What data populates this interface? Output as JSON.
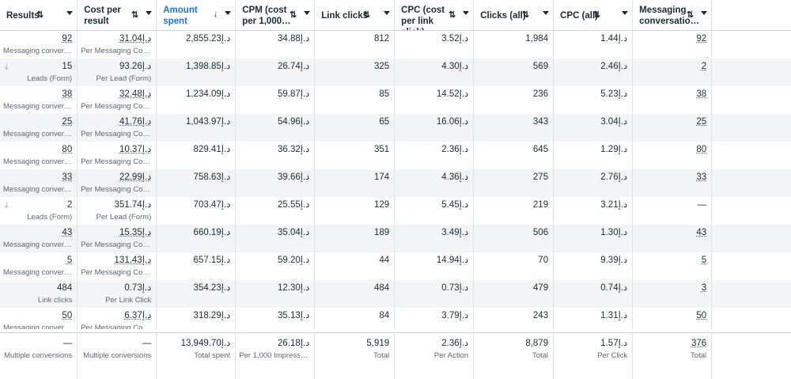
{
  "headers": [
    {
      "label": "Results",
      "sort": "⇅",
      "active": false
    },
    {
      "label": "Cost per result",
      "sort": "⇅",
      "active": false
    },
    {
      "label": "Amount spent",
      "sort": "↓",
      "active": true
    },
    {
      "label": "CPM (cost per 1,000…",
      "sort": "⇅",
      "active": false
    },
    {
      "label": "Link clicks",
      "sort": "⇅",
      "active": false
    },
    {
      "label": "CPC (cost per link click)",
      "sort": "⇅",
      "active": false
    },
    {
      "label": "Clicks (all)",
      "sort": "⇅",
      "active": false
    },
    {
      "label": "CPC (all)",
      "sort": "⇅",
      "active": false
    },
    {
      "label": "Messaging conversatio…",
      "sort": "⇅",
      "active": false
    }
  ],
  "rows": [
    {
      "results": "92",
      "results_type": "Messaging conversat…",
      "cpr": "31.04د.إ",
      "cpr_type": "Per Messaging Conv…",
      "spent": "2,855.23د.إ",
      "cpm": "34.88د.إ",
      "link_clicks": "812",
      "cpc_link": "3.52د.إ",
      "clicks_all": "1,984",
      "cpc_all": "1.44د.إ",
      "messaging": "92"
    },
    {
      "results": "15",
      "results_type": "Leads (Form)",
      "cpr": "93.26د.إ",
      "cpr_type": "Per Lead (Form)",
      "spent": "1,398.85د.إ",
      "cpm": "26.74د.إ",
      "link_clicks": "325",
      "cpc_link": "4.30د.إ",
      "clicks_all": "569",
      "cpc_all": "2.46د.إ",
      "messaging": "2"
    },
    {
      "results": "38",
      "results_type": "Messaging conversat…",
      "cpr": "32.48د.إ",
      "cpr_type": "Per Messaging Conv…",
      "spent": "1,234.09د.إ",
      "cpm": "59.87د.إ",
      "link_clicks": "85",
      "cpc_link": "14.52د.إ",
      "clicks_all": "236",
      "cpc_all": "5.23د.إ",
      "messaging": "38"
    },
    {
      "results": "25",
      "results_type": "Messaging conversat…",
      "cpr": "41.76د.إ",
      "cpr_type": "Per Messaging Conv…",
      "spent": "1,043.97د.إ",
      "cpm": "54.96د.إ",
      "link_clicks": "65",
      "cpc_link": "16.06د.إ",
      "clicks_all": "343",
      "cpc_all": "3.04د.إ",
      "messaging": "25"
    },
    {
      "results": "80",
      "results_type": "Messaging conversat…",
      "cpr": "10.37د.إ",
      "cpr_type": "Per Messaging Conv…",
      "spent": "829.41د.إ",
      "cpm": "36.32د.إ",
      "link_clicks": "351",
      "cpc_link": "2.36د.إ",
      "clicks_all": "645",
      "cpc_all": "1.29د.إ",
      "messaging": "80"
    },
    {
      "results": "33",
      "results_type": "Messaging conversat…",
      "cpr": "22.99د.إ",
      "cpr_type": "Per Messaging Conv…",
      "spent": "758.63د.إ",
      "cpm": "39.66د.إ",
      "link_clicks": "174",
      "cpc_link": "4.36د.إ",
      "clicks_all": "275",
      "cpc_all": "2.76د.إ",
      "messaging": "33"
    },
    {
      "results": "2",
      "results_type": "Leads (Form)",
      "cpr": "351.74د.إ",
      "cpr_type": "Per Lead (Form)",
      "spent": "703.47د.إ",
      "cpm": "25.55د.إ",
      "link_clicks": "129",
      "cpc_link": "5.45د.إ",
      "clicks_all": "219",
      "cpc_all": "3.21د.إ",
      "messaging": "—"
    },
    {
      "results": "43",
      "results_type": "Messaging conversat…",
      "cpr": "15.35د.إ",
      "cpr_type": "Per Messaging Conv…",
      "spent": "660.19د.إ",
      "cpm": "35.04د.إ",
      "link_clicks": "189",
      "cpc_link": "3.49د.إ",
      "clicks_all": "506",
      "cpc_all": "1.30د.إ",
      "messaging": "43"
    },
    {
      "results": "5",
      "results_type": "Messaging conversat…",
      "cpr": "131.43د.إ",
      "cpr_type": "Per Messaging Conv…",
      "spent": "657.15د.إ",
      "cpm": "59.20د.إ",
      "link_clicks": "44",
      "cpc_link": "14.94د.إ",
      "clicks_all": "70",
      "cpc_all": "9.39د.إ",
      "messaging": "5"
    },
    {
      "results": "484",
      "results_type": "Link clicks",
      "cpr": "0.73د.إ",
      "cpr_type": "Per Link Click",
      "spent": "354.23د.إ",
      "cpm": "12.30د.إ",
      "link_clicks": "484",
      "cpc_link": "0.73د.إ",
      "clicks_all": "479",
      "cpc_all": "0.74د.إ",
      "messaging": "3"
    },
    {
      "results": "50",
      "results_type": "Messaging conversat…",
      "cpr": "6.37د.إ",
      "cpr_type": "Per Messaging Conv…",
      "spent": "318.29د.إ",
      "cpm": "35.13د.إ",
      "link_clicks": "84",
      "cpc_link": "3.79د.إ",
      "clicks_all": "243",
      "cpc_all": "1.31د.إ",
      "messaging": "50"
    }
  ],
  "totals": {
    "results": "—",
    "results_label": "Multiple conversions",
    "cpr": "—",
    "cpr_label": "Multiple conversions",
    "spent": "13,949.70د.إ",
    "spent_label": "Total spent",
    "cpm": "26.18د.إ",
    "cpm_label": "Per 1,000 Impressions",
    "link_clicks": "5,919",
    "link_clicks_label": "Total",
    "cpc_link": "2.36د.إ",
    "cpc_link_label": "Per Action",
    "clicks_all": "8,879",
    "clicks_all_label": "Total",
    "cpc_all": "1.57د.إ",
    "cpc_all_label": "Per Click",
    "messaging": "376",
    "messaging_label": "Total"
  },
  "colors": {
    "accent": "#1b74e4",
    "row_alt": "#f2f4f6",
    "border": "#dfe3e7"
  },
  "icons": {
    "lead_row": "download-icon"
  }
}
